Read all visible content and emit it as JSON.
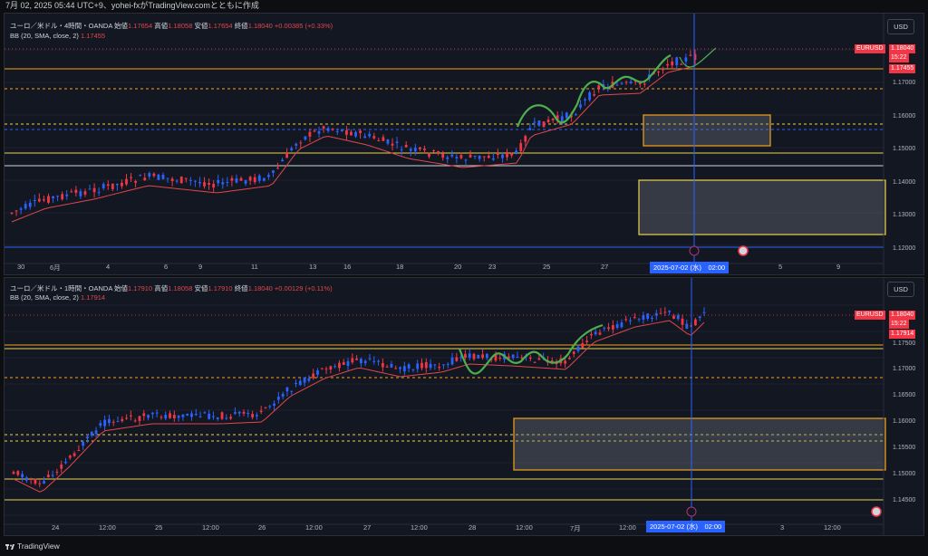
{
  "header": {
    "caption": "7月 02, 2025 05:44 UTC+9、yohei-fxがTradingView.comとともに作成"
  },
  "pane1": {
    "title": "ユーロ／米ドル・4時間・OANDA",
    "open_label": "始値",
    "open": "1.17654",
    "high_label": "高値",
    "high": "1.18058",
    "low_label": "安値",
    "low": "1.17654",
    "close_label": "終値",
    "close": "1.18040",
    "change": "+0.00385 (+0.33%)",
    "indicator": "BB (20, SMA, close, 2)",
    "indicator_value": "1.17455",
    "currency": "USD",
    "symbol_badge": "EURUSD",
    "last_price": "1.18040",
    "countdown": "15:22",
    "bb_price": "1.17455",
    "price_labels": [
      "1.17000",
      "1.16000",
      "1.15000",
      "1.14000",
      "1.13000",
      "1.12000"
    ],
    "x_labels": [
      "30",
      "6月",
      "4",
      "6",
      "9",
      "11",
      "13",
      "16",
      "18",
      "20",
      "23",
      "25",
      "27",
      "5",
      "9"
    ],
    "crosshair_date": "2025-07-02 (水)　02:00"
  },
  "pane2": {
    "title": "ユーロ／米ドル・1時間・OANDA",
    "open_label": "始値",
    "open": "1.17910",
    "high_label": "高値",
    "high": "1.18058",
    "low_label": "安値",
    "low": "1.17910",
    "close_label": "終値",
    "close": "1.18040",
    "change": "+0.00129 (+0.11%)",
    "indicator": "BB (20, SMA, close, 2)",
    "indicator_value": "1.17914",
    "currency": "USD",
    "symbol_badge": "EURUSD",
    "last_price": "1.18040",
    "countdown": "15:22",
    "bb_price": "1.17914",
    "price_labels": [
      "1.17500",
      "1.17000",
      "1.16500",
      "1.16000",
      "1.15500",
      "1.15000",
      "1.14500"
    ],
    "x_labels": [
      "24",
      "12:00",
      "25",
      "12:00",
      "26",
      "12:00",
      "27",
      "12:00",
      "28",
      "12:00",
      "7月",
      "12:00",
      "3",
      "12:00"
    ],
    "crosshair_date": "2025-07-02 (水)　02:00"
  },
  "footer": {
    "brand": "TradingView"
  },
  "colors": {
    "up": "#2962ff",
    "down": "#f23645",
    "bb": "#e0474c",
    "zone_orange": "#f7a21b",
    "zone_yellow": "#e8d44d",
    "wave": "#4caf50",
    "bg": "#131722"
  }
}
